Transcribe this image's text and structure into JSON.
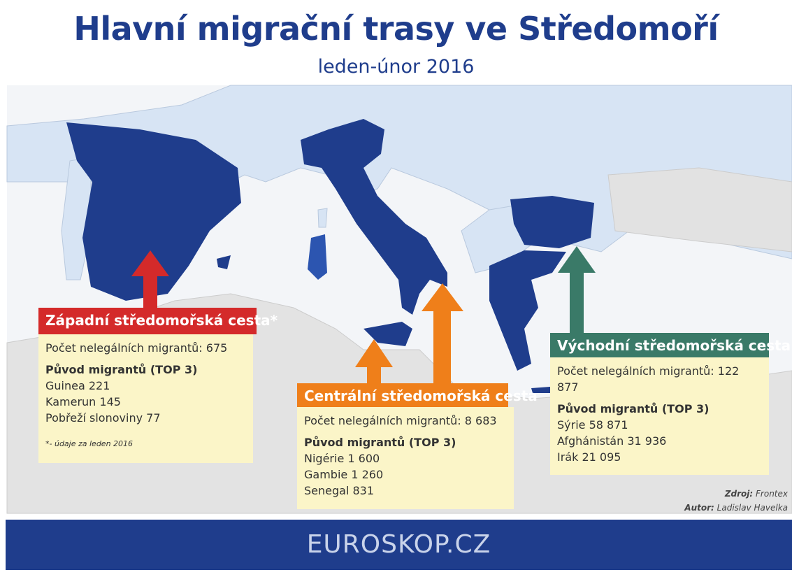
{
  "title": "Hlavní migrační trasy ve Středomoří",
  "subtitle": "leden-únor 2016",
  "routes": [
    {
      "name": "Západní středomořská cesta*",
      "count": "Počet nelegálních migrantů: 675",
      "origin_heading": "Původ migrantů (TOP 3)",
      "origins": [
        "Guinea 221",
        "Kamerun 145",
        "Pobřeží slonoviny 77"
      ],
      "note": "*- údaje za leden 2016"
    },
    {
      "name": "Centrální středomořská cesta",
      "count": "Počet nelegálních migrantů: 8 683",
      "origin_heading": "Původ migrantů (TOP 3)",
      "origins": [
        "Nigérie 1 600",
        "Gambie 1 260",
        "Senegal 831"
      ]
    },
    {
      "name": "Východní středomořská cesta",
      "count": "Počet nelegálních migrantů: 122 877",
      "origin_heading": "Původ migrantů (TOP 3)",
      "origins": [
        "Sýrie 58 871",
        "Afghánistán 31 936",
        "Irák 21 095"
      ]
    }
  ],
  "source": {
    "label": "Zdroj:",
    "value": "Frontex"
  },
  "author": {
    "label": "Autor:",
    "value": "Ladislav Havelka"
  },
  "footer": "EUROSKOP.CZ"
}
